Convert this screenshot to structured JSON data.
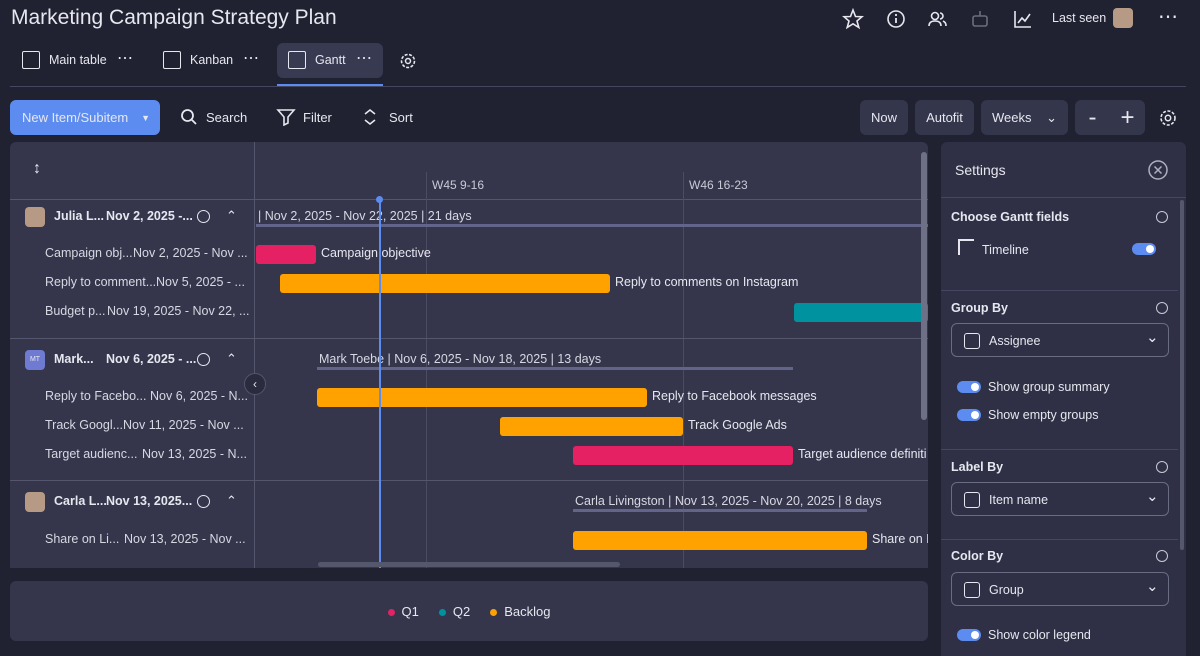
{
  "header": {
    "title": "Marketing Campaign Strategy Plan",
    "last_seen": "Last seen"
  },
  "tabs": [
    "Main table",
    "Kanban",
    "Gantt"
  ],
  "toolbar": {
    "new_item": "New Item/Subitem",
    "search": "Search",
    "filter": "Filter",
    "sort": "Sort",
    "now": "Now",
    "autofit": "Autofit",
    "weeks": "Weeks",
    "minus": "-",
    "plus": "+"
  },
  "timeline": {
    "weeks": [
      "W45 9-16",
      "W46 16-23"
    ]
  },
  "groups": [
    {
      "name": "Julia L...",
      "dates": "Nov 2, 2025 -...",
      "summary": "| Nov 2, 2025 - Nov 22, 2025 | 21 days",
      "items": [
        {
          "name": "Campaign obj...",
          "dates": "Nov 2, 2025 - Nov ...",
          "label": "Campaign objective"
        },
        {
          "name": "Reply to comment...",
          "dates": "Nov 5, 2025 - ...",
          "label": "Reply to comments on Instagram"
        },
        {
          "name": "Budget p...",
          "dates": "Nov 19, 2025 - Nov 22, ..."
        }
      ]
    },
    {
      "initials": "MT",
      "name": "Mark...",
      "dates": "Nov 6, 2025 - ...",
      "summary": "Mark Toebe | Nov 6, 2025 - Nov 18, 2025 | 13 days",
      "items": [
        {
          "name": "Reply to Facebo...",
          "dates": "Nov 6, 2025 - N...",
          "label": "Reply to Facebook messages"
        },
        {
          "name": "Track Googl...",
          "dates": "Nov 11, 2025 - Nov ...",
          "label": "Track Google Ads"
        },
        {
          "name": "Target audienc...",
          "dates": "Nov 13, 2025 - N...",
          "label": "Target audience definiti"
        }
      ]
    },
    {
      "name": "Carla L...",
      "dates": "Nov 13, 2025...",
      "summary": "Carla Livingston | Nov 13, 2025 - Nov 20, 2025 | 8 days",
      "items": [
        {
          "name": "Share on Li...",
          "dates": "Nov 13, 2025 - Nov ...",
          "label": "Share on L"
        }
      ]
    }
  ],
  "legend": [
    {
      "name": "Q1",
      "color": "#e62163"
    },
    {
      "name": "Q2",
      "color": "#00939f"
    },
    {
      "name": "Backlog",
      "color": "#ffa200"
    }
  ],
  "settings": {
    "title": "Settings",
    "gantt_fields": "Choose Gantt fields",
    "timeline": "Timeline",
    "group_by": "Group By",
    "group_by_value": "Assignee",
    "show_group_summary": "Show group summary",
    "show_empty_groups": "Show empty groups",
    "label_by": "Label By",
    "label_by_value": "Item name",
    "color_by": "Color By",
    "color_by_value": "Group",
    "show_color_legend": "Show color legend"
  }
}
